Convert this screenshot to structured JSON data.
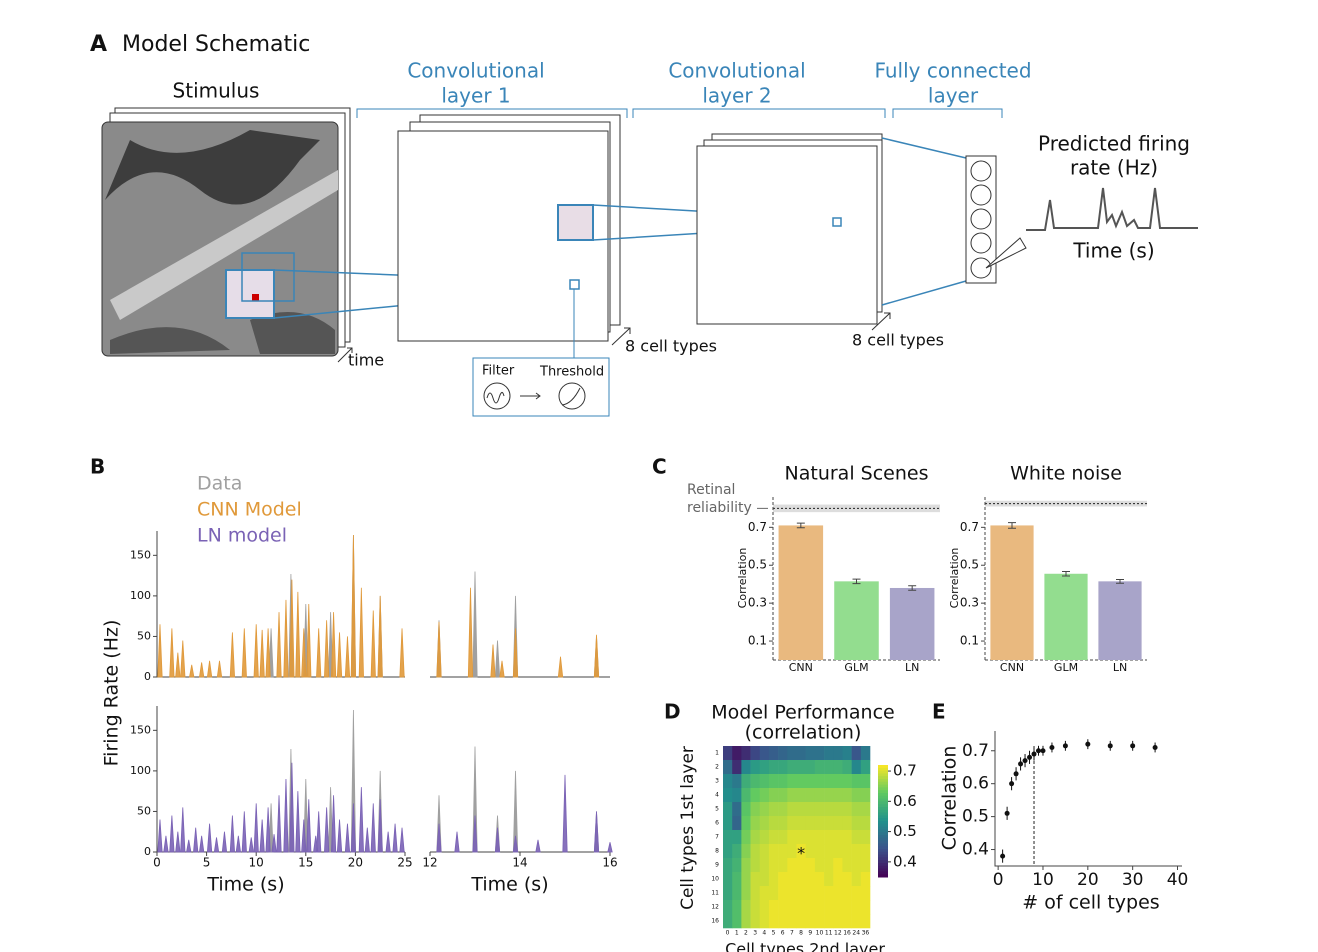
{
  "panel_labels": [
    "A",
    "B",
    "C",
    "D",
    "E"
  ],
  "schematic": {
    "title": "Model Schematic",
    "stimulus": "Stimulus",
    "time_label": "time",
    "conv1": [
      "Convolutional",
      "layer 1"
    ],
    "conv2": [
      "Convolutional",
      "layer 2"
    ],
    "fc": [
      "Fully connected",
      "layer"
    ],
    "output": [
      "Predicted firing",
      "rate (Hz)"
    ],
    "output_axis": "Time (s)",
    "cell_types": [
      "8 cell types",
      "8 cell types"
    ],
    "filter": "Filter",
    "threshold": "Threshold"
  },
  "chart_data": [
    {
      "type": "spike",
      "ylabel": "Firing Rate (Hz)",
      "xlabel": "Time (s)",
      "ylim": [
        0,
        180
      ],
      "yticks": [
        0,
        50,
        100,
        150
      ],
      "panels": [
        {
          "xlim": [
            0,
            25
          ],
          "series": [
            {
              "name": "Data",
              "color": "#a0a0a0",
              "x": [
                11.5,
                13.5,
                15.0,
                17.5,
                19.8,
                22.5
              ],
              "values": [
                60,
                127,
                90,
                80,
                175,
                100
              ]
            },
            {
              "name": "CNN Model",
              "color": "#e0993a",
              "x": [
                0.3,
                1.5,
                2.1,
                2.6,
                3.5,
                4.5,
                5.3,
                6.3,
                7.6,
                8.8,
                10,
                10.6,
                11.2,
                12.3,
                13.0,
                13.6,
                14.2,
                14.8,
                15.3,
                16.3,
                17.1,
                17.8,
                18.4,
                19.2,
                19.8,
                20.6,
                21.8,
                22.5,
                24.7
              ],
              "values": [
                65,
                60,
                30,
                45,
                15,
                18,
                20,
                20,
                55,
                60,
                65,
                58,
                60,
                80,
                95,
                120,
                105,
                60,
                90,
                60,
                70,
                80,
                55,
                50,
                175,
                110,
                82,
                100,
                60
              ]
            }
          ]
        },
        {
          "xlim": [
            12,
            16
          ],
          "series": [
            {
              "name": "Data",
              "color": "#a0a0a0",
              "x": [
                12.2,
                13.0,
                13.5,
                13.9,
                15.7
              ],
              "values": [
                70,
                130,
                45,
                100,
                50
              ]
            },
            {
              "name": "CNN Model",
              "color": "#e0993a",
              "x": [
                12.2,
                12.9,
                13.4,
                13.6,
                13.9,
                14.9,
                15.7
              ],
              "values": [
                68,
                110,
                40,
                20,
                60,
                25,
                52
              ]
            }
          ]
        },
        {
          "xlim": [
            0,
            25
          ],
          "xticks": [
            0,
            5,
            10,
            15,
            20,
            25
          ],
          "series": [
            {
              "name": "Data",
              "color": "#a0a0a0",
              "x": [
                11.5,
                13.5,
                15.0,
                17.5,
                19.8,
                22.5
              ],
              "values": [
                60,
                127,
                90,
                80,
                175,
                100
              ]
            },
            {
              "name": "LN model",
              "color": "#7a62b5",
              "x": [
                0.3,
                0.9,
                1.5,
                2.1,
                2.6,
                3.2,
                3.9,
                4.5,
                5.3,
                6.0,
                6.8,
                7.6,
                8.2,
                8.8,
                9.5,
                10,
                10.6,
                11.2,
                11.8,
                12.3,
                13.0,
                13.6,
                14.2,
                14.8,
                15.3,
                16.0,
                16.3,
                17.1,
                17.8,
                18.4,
                19.2,
                19.8,
                20.6,
                21.2,
                21.8,
                22.5,
                23.3,
                24.0,
                24.7
              ],
              "values": [
                40,
                20,
                45,
                25,
                55,
                15,
                30,
                20,
                35,
                18,
                25,
                45,
                20,
                50,
                18,
                60,
                40,
                55,
                22,
                70,
                90,
                110,
                75,
                40,
                65,
                20,
                50,
                55,
                70,
                40,
                35,
                60,
                80,
                30,
                60,
                65,
                25,
                35,
                30
              ]
            }
          ]
        },
        {
          "xlim": [
            12,
            16
          ],
          "xticks": [
            12,
            14,
            16
          ],
          "series": [
            {
              "name": "Data",
              "color": "#a0a0a0",
              "x": [
                12.2,
                13.0,
                13.5,
                13.9,
                15.7
              ],
              "values": [
                70,
                130,
                45,
                100,
                50
              ]
            },
            {
              "name": "LN model",
              "color": "#7a62b5",
              "x": [
                12.2,
                12.6,
                13.0,
                13.5,
                13.9,
                14.4,
                15.0,
                15.7,
                16.0
              ],
              "values": [
                35,
                25,
                45,
                30,
                20,
                15,
                95,
                50,
                12
              ]
            }
          ]
        }
      ]
    },
    {
      "type": "bar",
      "title": "Natural Scenes",
      "ylabel": "Correlation",
      "categories": [
        "CNN",
        "GLM",
        "LN"
      ],
      "values": [
        0.71,
        0.415,
        0.38
      ],
      "errors": [
        0.012,
        0.012,
        0.012
      ],
      "colors": [
        "#e9b97f",
        "#93dd8f",
        "#a8a4c9"
      ],
      "ylim": [
        0,
        0.86
      ],
      "yticks": [
        0.1,
        0.3,
        0.5,
        0.7
      ],
      "reliability": 0.8,
      "reliability_error": 0.02,
      "annotation": [
        "Retinal",
        "reliability"
      ]
    },
    {
      "type": "bar",
      "title": "White noise",
      "ylabel": "Correlation",
      "categories": [
        "CNN",
        "GLM",
        "LN"
      ],
      "values": [
        0.71,
        0.455,
        0.415
      ],
      "errors": [
        0.015,
        0.012,
        0.01
      ],
      "colors": [
        "#e9b97f",
        "#93dd8f",
        "#a8a4c9"
      ],
      "ylim": [
        0,
        0.86
      ],
      "yticks": [
        0.1,
        0.3,
        0.5,
        0.7
      ],
      "reliability": 0.825,
      "reliability_error": 0.015
    },
    {
      "type": "heatmap",
      "title": [
        "Model Performance",
        "(correlation)"
      ],
      "xlabel": "Cell types 2nd layer",
      "ylabel": "Cell types 1st layer",
      "annotation": "*",
      "rows": [
        "1",
        "2",
        "3",
        "4",
        "5",
        "6",
        "7",
        "8",
        "9",
        "10",
        "11",
        "12",
        "16"
      ],
      "columns": [
        "0",
        "1",
        "2",
        "3",
        "4",
        "5",
        "6",
        "7",
        "8",
        "9",
        "10",
        "11",
        "12",
        "16",
        "24",
        "36"
      ],
      "values": [
        [
          0.42,
          0.38,
          0.4,
          0.43,
          0.45,
          0.46,
          0.47,
          0.48,
          0.48,
          0.49,
          0.49,
          0.5,
          0.5,
          0.51,
          0.45,
          0.5
        ],
        [
          0.48,
          0.4,
          0.52,
          0.55,
          0.56,
          0.57,
          0.57,
          0.58,
          0.58,
          0.58,
          0.59,
          0.59,
          0.59,
          0.58,
          0.52,
          0.56
        ],
        [
          0.52,
          0.5,
          0.58,
          0.6,
          0.61,
          0.62,
          0.62,
          0.63,
          0.63,
          0.63,
          0.63,
          0.63,
          0.63,
          0.63,
          0.62,
          0.62
        ],
        [
          0.53,
          0.52,
          0.6,
          0.63,
          0.64,
          0.65,
          0.65,
          0.66,
          0.66,
          0.66,
          0.66,
          0.66,
          0.66,
          0.66,
          0.65,
          0.65
        ],
        [
          0.55,
          0.48,
          0.62,
          0.65,
          0.66,
          0.67,
          0.67,
          0.68,
          0.68,
          0.68,
          0.68,
          0.68,
          0.68,
          0.68,
          0.67,
          0.67
        ],
        [
          0.55,
          0.47,
          0.63,
          0.66,
          0.67,
          0.68,
          0.68,
          0.69,
          0.69,
          0.69,
          0.69,
          0.69,
          0.69,
          0.69,
          0.68,
          0.68
        ],
        [
          0.56,
          0.56,
          0.64,
          0.67,
          0.68,
          0.69,
          0.69,
          0.7,
          0.7,
          0.7,
          0.7,
          0.7,
          0.7,
          0.7,
          0.69,
          0.69
        ],
        [
          0.56,
          0.58,
          0.65,
          0.68,
          0.69,
          0.7,
          0.7,
          0.7,
          0.71,
          0.7,
          0.7,
          0.7,
          0.7,
          0.7,
          0.7,
          0.7
        ],
        [
          0.57,
          0.59,
          0.66,
          0.68,
          0.69,
          0.7,
          0.7,
          0.71,
          0.71,
          0.71,
          0.7,
          0.7,
          0.71,
          0.7,
          0.7,
          0.7
        ],
        [
          0.57,
          0.6,
          0.66,
          0.69,
          0.69,
          0.7,
          0.71,
          0.71,
          0.71,
          0.71,
          0.71,
          0.7,
          0.71,
          0.71,
          0.7,
          0.71
        ],
        [
          0.57,
          0.6,
          0.66,
          0.69,
          0.7,
          0.7,
          0.71,
          0.71,
          0.71,
          0.71,
          0.71,
          0.71,
          0.71,
          0.71,
          0.71,
          0.71
        ],
        [
          0.58,
          0.61,
          0.67,
          0.69,
          0.7,
          0.71,
          0.71,
          0.71,
          0.71,
          0.71,
          0.71,
          0.71,
          0.71,
          0.71,
          0.71,
          0.71
        ],
        [
          0.58,
          0.61,
          0.67,
          0.69,
          0.7,
          0.71,
          0.71,
          0.71,
          0.71,
          0.71,
          0.71,
          0.71,
          0.71,
          0.71,
          0.71,
          0.71
        ]
      ],
      "zlim": [
        0.35,
        0.72
      ],
      "zticks": [
        0.4,
        0.5,
        0.6,
        0.7
      ],
      "colormap": "viridis"
    },
    {
      "type": "scatter",
      "xlabel": "# of cell types",
      "ylabel": "Correlation",
      "x": [
        1,
        2,
        3,
        4,
        5,
        6,
        7,
        8,
        9,
        10,
        12,
        15,
        20,
        25,
        30,
        35
      ],
      "values": [
        0.38,
        0.51,
        0.6,
        0.63,
        0.66,
        0.67,
        0.68,
        0.69,
        0.7,
        0.7,
        0.71,
        0.715,
        0.72,
        0.715,
        0.715,
        0.71
      ],
      "errors": [
        0.02,
        0.02,
        0.02,
        0.02,
        0.02,
        0.02,
        0.02,
        0.02,
        0.015,
        0.015,
        0.015,
        0.015,
        0.015,
        0.015,
        0.015,
        0.015
      ],
      "xlim": [
        -0.7,
        41
      ],
      "ylim": [
        0.35,
        0.76
      ],
      "xticks": [
        0,
        10,
        20,
        30,
        40
      ],
      "yticks": [
        0.4,
        0.5,
        0.6,
        0.7
      ],
      "vline": 8,
      "color": "#111111"
    }
  ]
}
